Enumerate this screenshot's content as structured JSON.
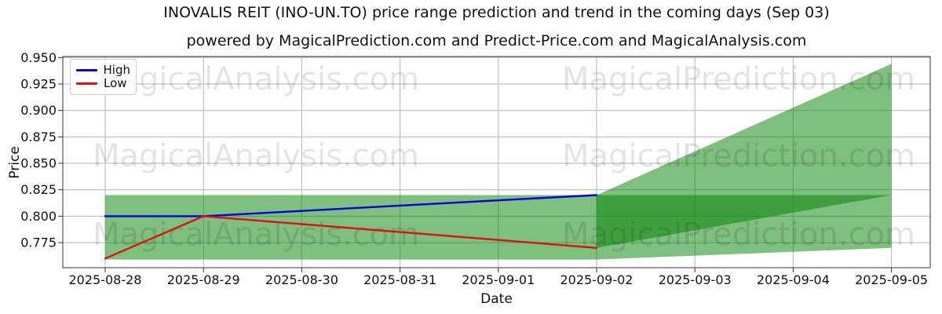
{
  "chart_data": {
    "type": "line",
    "title": "INOVALIS REIT (INO-UN.TO) price range prediction and trend in the coming days (Sep 03)",
    "subtitle": "powered by MagicalPrediction.com and Predict-Price.com and MagicalAnalysis.com",
    "xlabel": "Date",
    "ylabel": "Price",
    "x_tick_labels": [
      "2025-08-28",
      "2025-08-29",
      "2025-08-30",
      "2025-08-31",
      "2025-09-01",
      "2025-09-02",
      "2025-09-03",
      "2025-09-04",
      "2025-09-05"
    ],
    "y_ticks": [
      0.95,
      0.925,
      0.9,
      0.875,
      0.85,
      0.825,
      0.8,
      0.775
    ],
    "y_tick_labels": [
      "0.950",
      "0.925",
      "0.900",
      "0.875",
      "0.850",
      "0.825",
      "0.800",
      "0.775"
    ],
    "ylim": [
      0.7513,
      0.951
    ],
    "grid": true,
    "colors": {
      "high_line": "#0000dd",
      "low_line": "#dd1111",
      "band_fill": "#008000",
      "band_opacity": 0.5,
      "grid": "#b5b5b5",
      "axes_border": "#333333"
    },
    "legend": {
      "position": "upper left",
      "entries": [
        {
          "label": "High",
          "color": "#0000dd"
        },
        {
          "label": "Low",
          "color": "#dd1111"
        }
      ]
    },
    "series": [
      {
        "name": "High",
        "color": "#0000dd",
        "x_index": [
          0,
          1,
          2,
          3,
          4,
          5
        ],
        "values": [
          0.8,
          0.8,
          0.805,
          0.81,
          0.815,
          0.82
        ]
      },
      {
        "name": "Low",
        "color": "#dd1111",
        "x_index": [
          0,
          1,
          2,
          3,
          4,
          5
        ],
        "values": [
          0.76,
          0.8,
          0.7925,
          0.785,
          0.7775,
          0.77
        ]
      }
    ],
    "bands": [
      {
        "name": "price-range-band",
        "color": "#008000",
        "opacity": 0.5,
        "points": [
          [
            0,
            0.82
          ],
          [
            8,
            0.82
          ],
          [
            8,
            0.77
          ],
          [
            5,
            0.759
          ],
          [
            0,
            0.759
          ]
        ]
      },
      {
        "name": "forecast-cone",
        "color": "#008000",
        "opacity": 0.5,
        "points": [
          [
            5,
            0.82
          ],
          [
            8,
            0.944
          ],
          [
            8,
            0.82
          ],
          [
            5,
            0.77
          ]
        ]
      }
    ],
    "watermark": {
      "texts": [
        "MagicalAnalysis.com",
        "MagicalPrediction.com"
      ],
      "row_centers_y": [
        100,
        198,
        298
      ],
      "opacity": 0.105
    }
  }
}
